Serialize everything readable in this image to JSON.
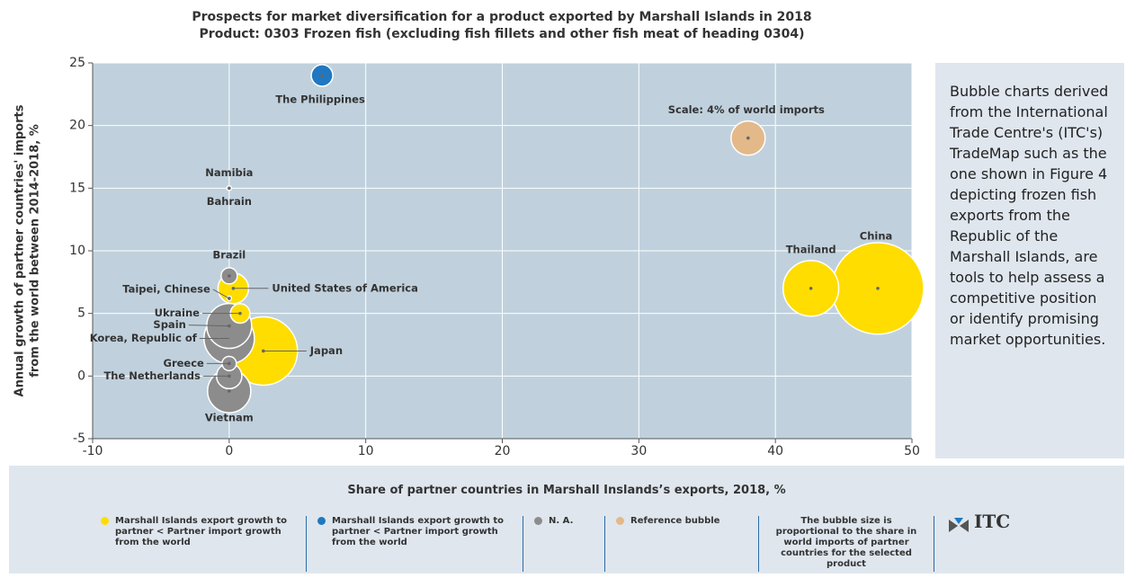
{
  "chart_data": {
    "type": "bubble",
    "title": "Prospects for market diversification for a product exported by Marshall Islands in 2018",
    "subtitle": "Product: 0303 Frozen fish (excluding fish fillets and other fish meat of heading 0304)",
    "x_label": "Share of partner countries in Marshall Inslands’s exports, 2018, %",
    "y_label": [
      "Annual growth of partner countries' imports",
      "from the world between 2014-2018, %"
    ],
    "xlim": [
      -10,
      50
    ],
    "xticks": [
      -10,
      0,
      10,
      20,
      30,
      40,
      50
    ],
    "ylim": [
      -5,
      25
    ],
    "yticks": [
      -5,
      0,
      5,
      10,
      15,
      20,
      25
    ],
    "grid": true,
    "series": [
      {
        "name": "Marshall Islands export growth to partner < Partner import growth from the world",
        "color": "#ffdd00",
        "labels": [
          "United States of America",
          "Ukraine",
          "Japan",
          "Thailand",
          "China"
        ],
        "x": [
          0.3,
          0.8,
          2.5,
          42.6,
          47.5
        ],
        "values": [
          7,
          5,
          2,
          7,
          7
        ],
        "sizes": [
          3.2,
          1.3,
          16,
          10.6,
          28.8
        ]
      },
      {
        "name": "Marshall Islands export growth to partner < Partner import growth from the world",
        "color": "#1f78c1",
        "labels": [
          "The Philippines"
        ],
        "x": [
          6.8
        ],
        "values": [
          24
        ],
        "sizes": [
          1.6
        ]
      },
      {
        "name": "N. A.",
        "color": "#8c8c8c",
        "labels": [
          "Namibia",
          "Bahrain",
          "Brazil",
          "Taipei, Chinese",
          "Spain",
          "Korea, Republic of",
          "Greece",
          "The Netherlands",
          "Vietnam"
        ],
        "x": [
          0,
          0,
          0,
          0,
          0,
          0,
          0,
          0,
          0
        ],
        "values": [
          15,
          15,
          8,
          6.2,
          4,
          3,
          1,
          0,
          -1.2
        ],
        "sizes": [
          0.02,
          0.02,
          0.9,
          0.02,
          6.9,
          8.7,
          0.7,
          2.2,
          6.4
        ]
      },
      {
        "name": "Reference bubble",
        "color": "#e3b98a",
        "labels": [
          "Scale: 4% of world imports"
        ],
        "x": [
          38
        ],
        "values": [
          19
        ],
        "sizes": [
          4
        ]
      }
    ],
    "size_note": "The bubble size is proportional to the share in world imports of partner countries for the selected product",
    "logo": "ITC",
    "side_text": "Bubble charts derived from the International Trade Centre's (ITC's) TradeMap such as the one shown in Figure 4 depicting frozen fish exports from the Republic of the Marshall Islands, are tools to help assess a competitive position or identify promising market opportunities."
  }
}
